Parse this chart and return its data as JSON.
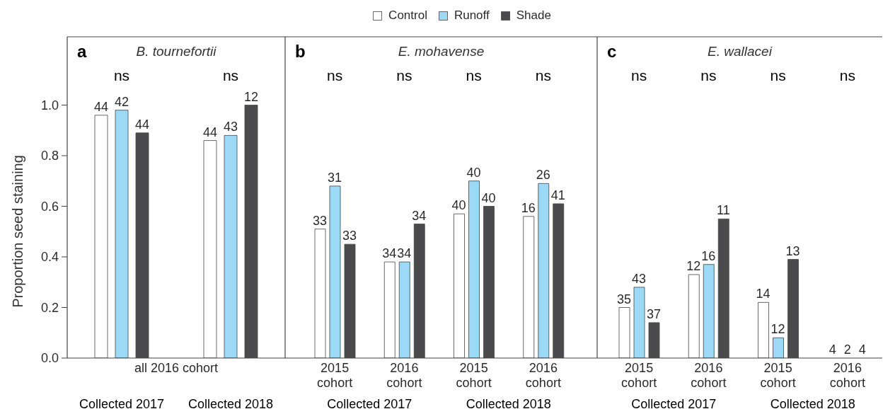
{
  "chart_data": [
    {
      "type": "bar",
      "title": "a",
      "subtitle": "B. tournefortii",
      "xlabel": "all 2016 cohort",
      "ylabel": "Proportion seed staining",
      "categories": [
        "Collected 2017",
        "Collected 2018"
      ],
      "series": [
        {
          "color": "#ffffff",
          "values": [
            0.96,
            0.86
          ]
        },
        {
          "color": "#9bd9f6",
          "values": [
            0.98,
            0.88
          ]
        },
        {
          "color": "#4b4b4d",
          "values": [
            0.89,
            1.0
          ]
        }
      ],
      "ylim": [
        0,
        1.27
      ],
      "yticks": [
        {
          "value": 0,
          "label": "0.0"
        },
        0.2,
        0.4,
        0.6,
        0.8,
        {
          "value": 1,
          "label": "1.0"
        }
      ],
      "annotations": [
        "ns",
        "ns",
        "44",
        "42",
        "44",
        "44",
        "43",
        "12"
      ]
    },
    {
      "type": "bar",
      "title": "b",
      "subtitle": "E. mohavense",
      "categories": [
        "2015 cohort",
        "2016 cohort",
        "2015 cohort",
        "2016 cohort"
      ],
      "series": [
        {
          "name": "Control",
          "color": "#ffffff",
          "values": [
            0.51,
            0.38,
            0.57,
            0.56
          ]
        },
        {
          "name": "Runoff",
          "color": "#9bd9f6",
          "values": [
            0.68,
            0.38,
            0.7,
            0.69
          ]
        },
        {
          "name": "Shade",
          "color": "#4b4b4d",
          "values": [
            0.45,
            0.53,
            0.6,
            0.61
          ]
        }
      ],
      "ylim": [
        0,
        1.27
      ],
      "tick_labels": "x",
      "legend": "top",
      "annotations": [
        "ns",
        "ns",
        "ns",
        "ns",
        "33",
        "31",
        "33",
        "34",
        "34",
        "34",
        "40",
        "40",
        "40",
        "16",
        "26",
        "41",
        "Collected 2017",
        "Collected 2018"
      ]
    },
    {
      "type": "bar",
      "title": "c",
      "subtitle": "E. wallacei",
      "categories": [
        "2015 cohort",
        "2016 cohort",
        "2015 cohort",
        "2016 cohort"
      ],
      "series": [
        {
          "color": "#ffffff",
          "values": [
            0.2,
            0.33,
            0.22,
            0
          ]
        },
        {
          "color": "#9bd9f6",
          "values": [
            0.28,
            0.37,
            0.08,
            0
          ]
        },
        {
          "color": "#4b4b4d",
          "values": [
            0.14,
            0.55,
            0.39,
            0
          ]
        }
      ],
      "ylim": [
        0,
        1.27
      ],
      "tick_labels": "x",
      "annotations": [
        "ns",
        "ns",
        "ns",
        "ns",
        "35",
        "43",
        "37",
        "12",
        "16",
        "11",
        "14",
        "12",
        "13",
        "4",
        "2",
        "4",
        "Collected 2017",
        "Collected 2018"
      ]
    }
  ]
}
